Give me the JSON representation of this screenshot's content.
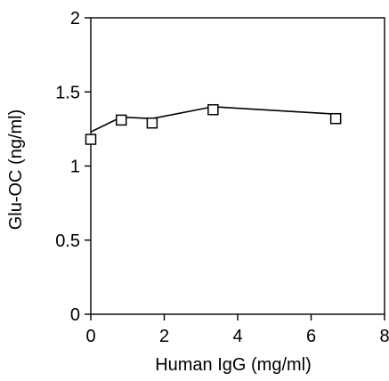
{
  "chart_data": {
    "type": "line",
    "title": "",
    "xlabel": "Human IgG (mg/ml)",
    "ylabel": "Glu-OC (ng/ml)",
    "xlim": [
      0,
      8
    ],
    "ylim": [
      0,
      2
    ],
    "xticks": [
      0,
      2,
      4,
      6,
      8
    ],
    "yticks": [
      0,
      0.5,
      1,
      1.5,
      2
    ],
    "xtick_labels": [
      "0",
      "2",
      "4",
      "6",
      "8"
    ],
    "ytick_labels": [
      "0",
      "0.5",
      "1",
      "1.5",
      "2"
    ],
    "grid": false,
    "marker": "open-square",
    "series": [
      {
        "x": [
          0,
          0.83,
          1.67,
          3.33,
          6.67
        ],
        "y": [
          1.18,
          1.31,
          1.29,
          1.38,
          1.32
        ],
        "line_y": [
          1.23,
          1.33,
          1.32,
          1.4,
          1.35
        ]
      }
    ],
    "colors": {
      "line": "#000000",
      "marker_fill": "#ffffff",
      "marker_stroke": "#000000"
    }
  }
}
